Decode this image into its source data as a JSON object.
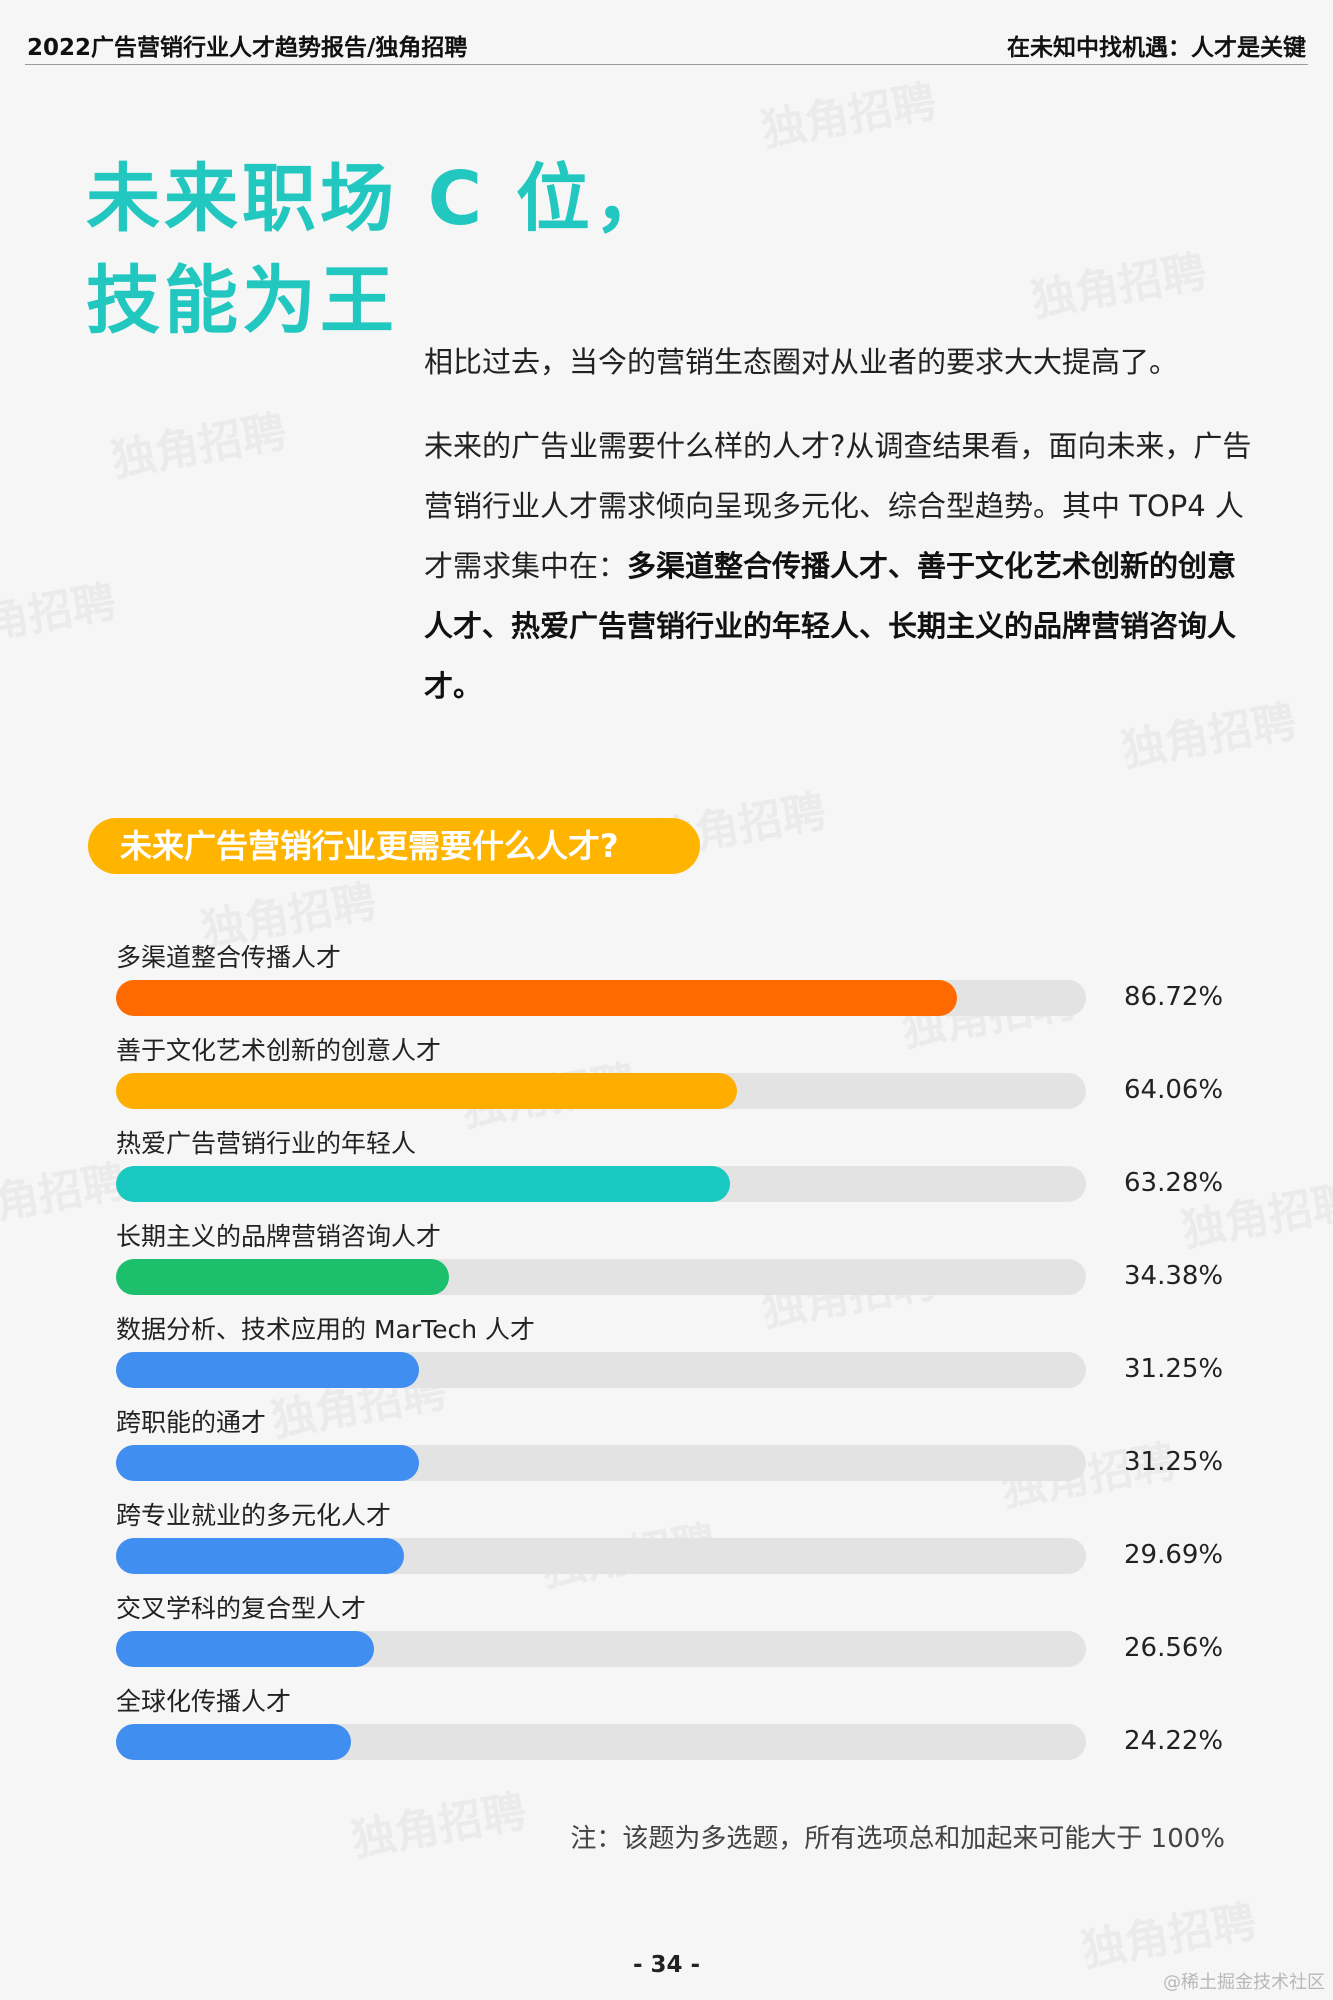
{
  "header": {
    "left": "2022广告营销行业人才趋势报告/独角招聘",
    "right": "在未知中找机遇：人才是关键"
  },
  "title": {
    "line1": "未来职场 C 位，",
    "line2": "技能为王"
  },
  "intro": {
    "p1": "相比过去，当今的营销生态圈对从业者的要求大大提高了。",
    "p2_plain": "未来的广告业需要什么样的人才?从调查结果看，面向未来，广告营销行业人才需求倾向呈现多元化、综合型趋势。其中 TOP4 人才需求集中在：",
    "p2_bold": "多渠道整合传播人才、善于文化艺术创新的创意人才、热爱广告营销行业的年轻人、长期主义的品牌营销咨询人才。"
  },
  "watermark_text": "独角招聘",
  "chart_data": {
    "type": "bar",
    "orientation": "horizontal",
    "title": "未来广告营销行业更需要什么人才?",
    "xlim": [
      0,
      100
    ],
    "categories": [
      "多渠道整合传播人才",
      "善于文化艺术创新的创意人才",
      "热爱广告营销行业的年轻人",
      "长期主义的品牌营销咨询人才",
      "数据分析、技术应用的 MarTech 人才",
      "跨职能的通才",
      "跨专业就业的多元化人才",
      "交叉学科的复合型人才",
      "全球化传播人才"
    ],
    "values": [
      86.72,
      64.06,
      63.28,
      34.38,
      31.25,
      31.25,
      29.69,
      26.56,
      24.22
    ],
    "value_labels": [
      "86.72%",
      "64.06%",
      "63.28%",
      "34.38%",
      "31.25%",
      "31.25%",
      "29.69%",
      "26.56%",
      "24.22%"
    ],
    "colors": [
      "#ff6a00",
      "#ffad00",
      "#19c8c0",
      "#1cc06c",
      "#3f8ef0",
      "#3f8ef0",
      "#3f8ef0",
      "#3f8ef0",
      "#3f8ef0"
    ],
    "track_color": "#e3e3e3",
    "note": "注：该题为多选题，所有选项总和加起来可能大于 100%"
  },
  "page_number": "- 34 -",
  "corner_mark": "@稀土掘金技术社区"
}
